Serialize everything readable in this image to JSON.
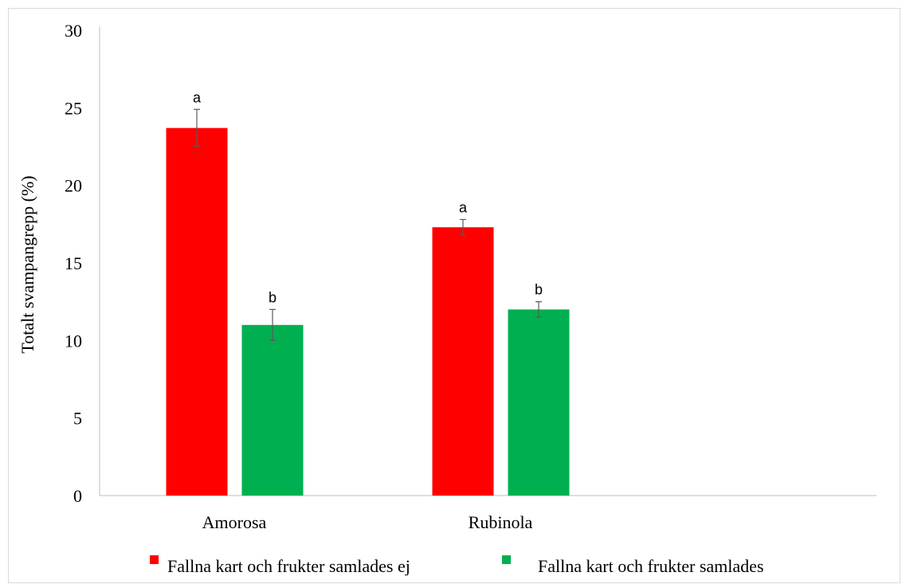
{
  "chart_data": {
    "type": "bar",
    "title": "",
    "xlabel": "",
    "ylabel": "Totalt svampangrepp (%)",
    "ylim": [
      0,
      30
    ],
    "yticks": [
      0,
      5,
      10,
      15,
      20,
      25,
      30
    ],
    "categories": [
      "Amorosa",
      "Rubinola"
    ],
    "grid": false,
    "legend_position": "bottom",
    "series": [
      {
        "name": "Fallna kart och frukter samlades ej",
        "color": "#ff0000",
        "values": [
          23.7,
          17.3
        ],
        "errors": [
          1.2,
          0.5
        ],
        "labels": [
          "a",
          "a"
        ]
      },
      {
        "name": "Fallna kart och frukter samlades",
        "color": "#00b050",
        "values": [
          11.0,
          12.0
        ],
        "errors": [
          1.0,
          0.5
        ],
        "labels": [
          "b",
          "b"
        ]
      }
    ]
  }
}
